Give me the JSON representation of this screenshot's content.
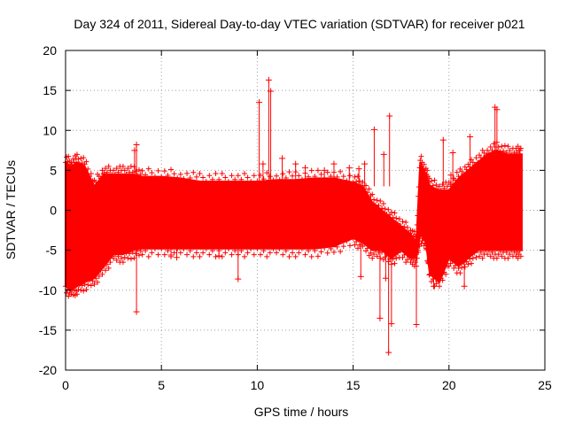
{
  "chart_data": {
    "type": "scatter",
    "title": "Day 324 of 2011, Sidereal Day-to-day VTEC variation (SDTVAR) for receiver p021",
    "xlabel": "GPS time / hours",
    "ylabel": "SDTVAR / TECUs",
    "xlim": [
      0,
      25
    ],
    "ylim": [
      -20,
      20
    ],
    "xticks": [
      "0",
      "5",
      "10",
      "15",
      "20",
      "25"
    ],
    "yticks": [
      "20",
      "15",
      "10",
      "5",
      "0",
      "-5",
      "-10",
      "-15",
      "-20"
    ],
    "grid": true,
    "marker": "+",
    "color": "#ff0000",
    "series": [
      {
        "name": "SDTVAR",
        "envelope_x": [
          0.0,
          0.3,
          0.6,
          1.0,
          1.5,
          2.0,
          2.5,
          3.0,
          3.5,
          4.0,
          5.0,
          6.0,
          7.0,
          8.0,
          9.0,
          10.0,
          11.0,
          12.0,
          13.0,
          14.0,
          15.0,
          15.5,
          16.0,
          16.5,
          17.0,
          17.5,
          18.0,
          18.3,
          18.5,
          18.8,
          19.0,
          19.5,
          20.0,
          20.5,
          21.0,
          21.5,
          22.0,
          22.5,
          23.0,
          23.5,
          23.8
        ],
        "upper": [
          6,
          5.5,
          6,
          5.5,
          3,
          4.5,
          4.5,
          4.5,
          4.5,
          4.2,
          4.2,
          4,
          3.6,
          3.6,
          3.6,
          3.6,
          3.8,
          3.8,
          4,
          4,
          3.5,
          3,
          1,
          0,
          -1,
          -2,
          -3,
          -4,
          6,
          4.5,
          3,
          2.5,
          2.5,
          4,
          5,
          6,
          7,
          7.5,
          7,
          7,
          7
        ],
        "lower": [
          -9.5,
          -10,
          -9.5,
          -9,
          -8.5,
          -7,
          -5.5,
          -5.5,
          -5,
          -4.8,
          -4.8,
          -4.8,
          -4.8,
          -4.8,
          -4.8,
          -4.8,
          -4.8,
          -4.8,
          -4.8,
          -4.5,
          -3.5,
          -4,
          -5,
          -5,
          -6,
          -5,
          -6,
          -6,
          -3,
          -4,
          -8,
          -9,
          -6,
          -7,
          -6,
          -5,
          -5,
          -5,
          -5,
          -5,
          -5
        ],
        "outliers_x": [
          10.1,
          10.6,
          10.7,
          16.9,
          16.85,
          3.7,
          3.6,
          3.7,
          22.4,
          22.5,
          19.7,
          20.2,
          20.1,
          21.1,
          8.0,
          9.0,
          10.3,
          11.3,
          12.0,
          12.5,
          14.0,
          15.3,
          15.6,
          16.6,
          16.4,
          16.7,
          17.0,
          16.1,
          17.2,
          18.3,
          19.2,
          20.8,
          23.7,
          13.5,
          2.0,
          5.5,
          5.8,
          14.8,
          15.4
        ],
        "outliers_y": [
          13.5,
          16.3,
          14.9,
          11.8,
          -17.8,
          8.2,
          7.5,
          -12.7,
          12.9,
          12.6,
          8.8,
          7.2,
          4.4,
          9.2,
          -5.7,
          -8.6,
          5.8,
          6.5,
          5.8,
          5.3,
          5.8,
          5.2,
          5.8,
          7.0,
          -13.5,
          -8.5,
          -14.2,
          10.1,
          -5.5,
          -14.3,
          -9.5,
          -9.5,
          7.5,
          5.0,
          4.6,
          -5.6,
          -5.9,
          5.3,
          -8.3
        ]
      }
    ]
  }
}
